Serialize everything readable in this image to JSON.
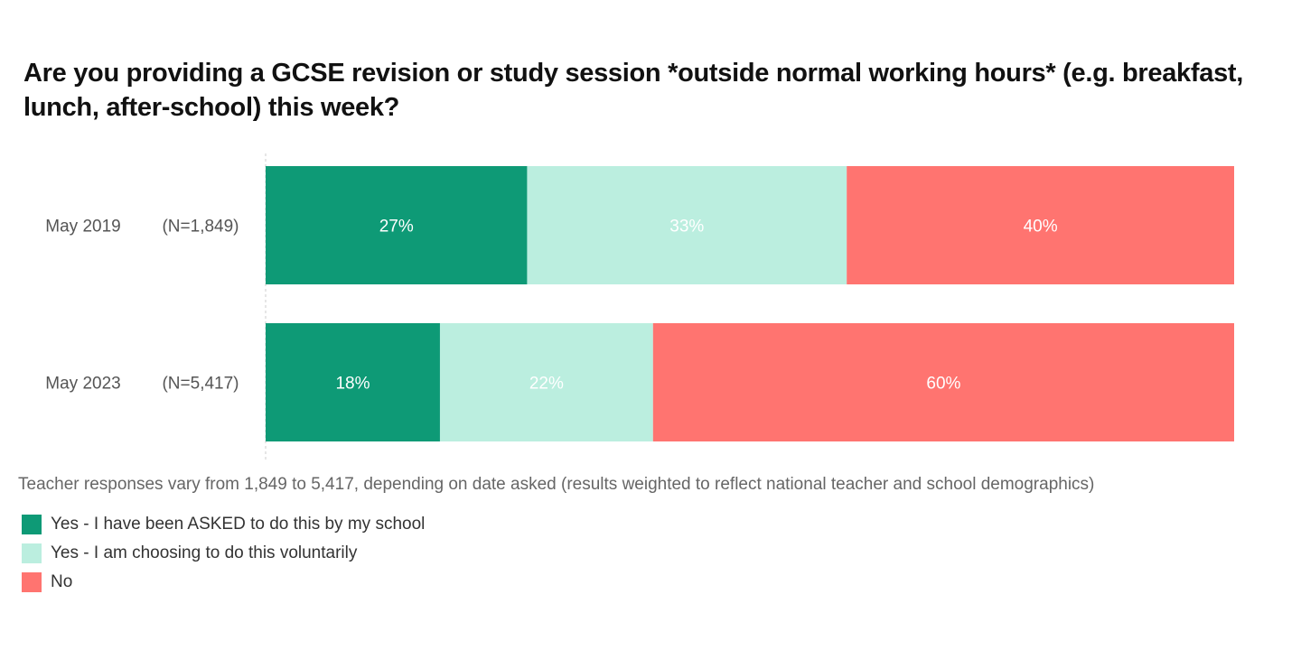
{
  "chart_data": {
    "type": "bar",
    "orientation": "horizontal",
    "stacked": true,
    "title": "Are you providing a GCSE revision or study session *outside normal working hours* (e.g. breakfast, lunch, after-school) this week?",
    "categories": [
      "May 2019",
      "May 2023"
    ],
    "category_n": [
      "(N=1,849)",
      "(N=5,417)"
    ],
    "series": [
      {
        "name": "Yes - I have been ASKED to do this by my school",
        "color": "#0e9a76",
        "label_color": "#ffffff",
        "values": [
          27,
          18
        ]
      },
      {
        "name": "Yes - I am choosing to do this voluntarily",
        "color": "#bbeedf",
        "label_color": "#ffffff",
        "values": [
          33,
          22
        ]
      },
      {
        "name": "No",
        "color": "#ff7470",
        "label_color": "#ffffff",
        "values": [
          40,
          60
        ]
      }
    ],
    "value_suffix": "%",
    "xlim": [
      0,
      100
    ],
    "grid": false,
    "legend_position": "bottom-left",
    "note": "Teacher responses vary from 1,849 to 5,417, depending on date asked (results weighted to reflect national teacher and school demographics)"
  }
}
